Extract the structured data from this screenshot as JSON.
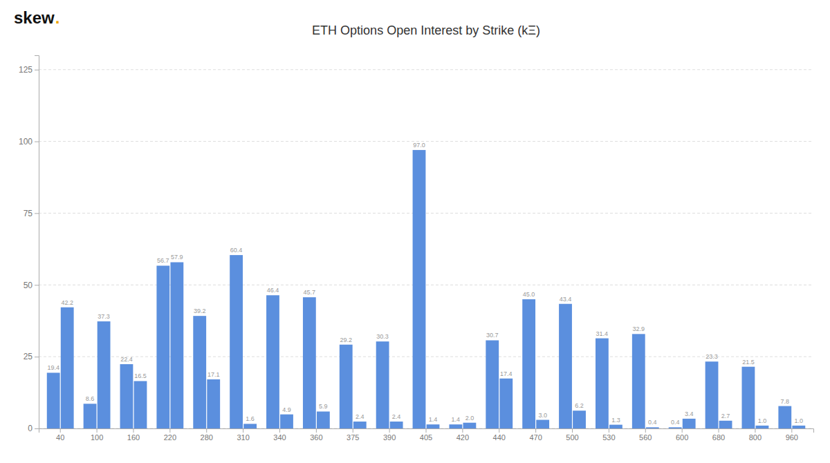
{
  "chart_data": {
    "type": "bar",
    "title": "ETH Options Open Interest by Strike (kΞ)",
    "annotations": [
      {
        "text": "skew",
        "color": "#111111"
      },
      {
        "text": ".",
        "color": "#f0a500"
      }
    ],
    "categories": [
      "40",
      "100",
      "160",
      "220",
      "280",
      "310",
      "340",
      "360",
      "375",
      "390",
      "405",
      "420",
      "440",
      "470",
      "500",
      "530",
      "560",
      "600",
      "680",
      "800",
      "960"
    ],
    "series": [
      {
        "color": "#5b8fde",
        "values": [
          19.4,
          8.6,
          22.4,
          56.7,
          39.2,
          60.4,
          46.4,
          45.7,
          29.2,
          30.3,
          97.0,
          1.4,
          30.7,
          45.0,
          43.4,
          31.4,
          32.9,
          0.4,
          23.3,
          21.5,
          7.8
        ],
        "value_labels": [
          "19.4",
          "8.6",
          "22.4",
          "56.7",
          "39.2",
          "60.4",
          "46.4",
          "45.7",
          "29.2",
          "30.3",
          "97.0",
          "1.4",
          "30.7",
          "45.0",
          "43.4",
          "31.4",
          "32.9",
          "0.4",
          "23.3",
          "21.5",
          "7.8"
        ]
      },
      {
        "color": "#5b8fde",
        "values": [
          42.2,
          37.3,
          16.5,
          57.9,
          17.1,
          1.6,
          4.9,
          5.9,
          2.4,
          2.4,
          1.4,
          2.0,
          17.4,
          3.0,
          6.2,
          1.3,
          0.4,
          3.4,
          2.7,
          1.0,
          1.0
        ],
        "value_labels": [
          "42.2",
          "37.3",
          "16.5",
          "57.9",
          "17.1",
          "1.6",
          "4.9",
          "5.9",
          "2.4",
          "2.4",
          "1.4",
          "2.0",
          "17.4",
          "3.0",
          "6.2",
          "1.3",
          "0.4",
          "3.4",
          "2.7",
          "1.0",
          "1.0"
        ]
      }
    ],
    "ylim": [
      0,
      130
    ],
    "yticks": [
      0,
      25,
      50,
      75,
      100,
      125
    ],
    "grid": true,
    "data_labels": true
  }
}
